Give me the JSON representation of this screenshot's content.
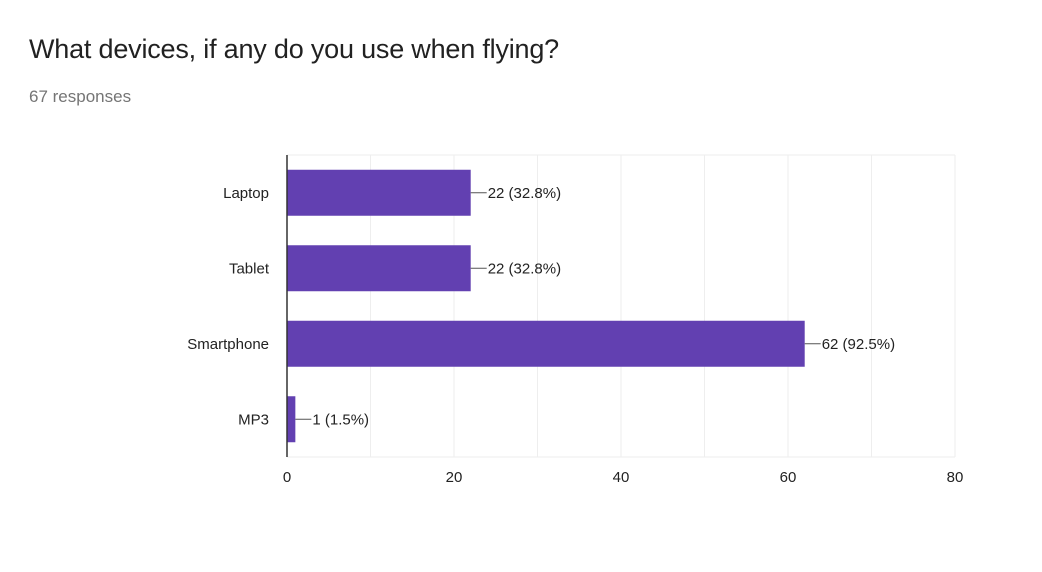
{
  "question": {
    "title": "What devices, if any do you use when flying?",
    "responses": "67 responses"
  },
  "colors": {
    "bar": "#6240b1",
    "grid": "#eeeeee",
    "axis": "#333333",
    "text": "#222222"
  },
  "chart_data": {
    "type": "bar",
    "orientation": "horizontal",
    "title": "",
    "xlabel": "",
    "ylabel": "",
    "categories": [
      "Laptop",
      "Tablet",
      "Smartphone",
      "MP3"
    ],
    "values": [
      22,
      22,
      62,
      1
    ],
    "data_labels": [
      "22 (32.8%)",
      "22 (32.8%)",
      "62 (92.5%)",
      "1 (1.5%)"
    ],
    "xlim": [
      0,
      80
    ],
    "xticks": [
      "0",
      "20",
      "40",
      "60",
      "80"
    ],
    "grid": true,
    "legend": "none"
  }
}
